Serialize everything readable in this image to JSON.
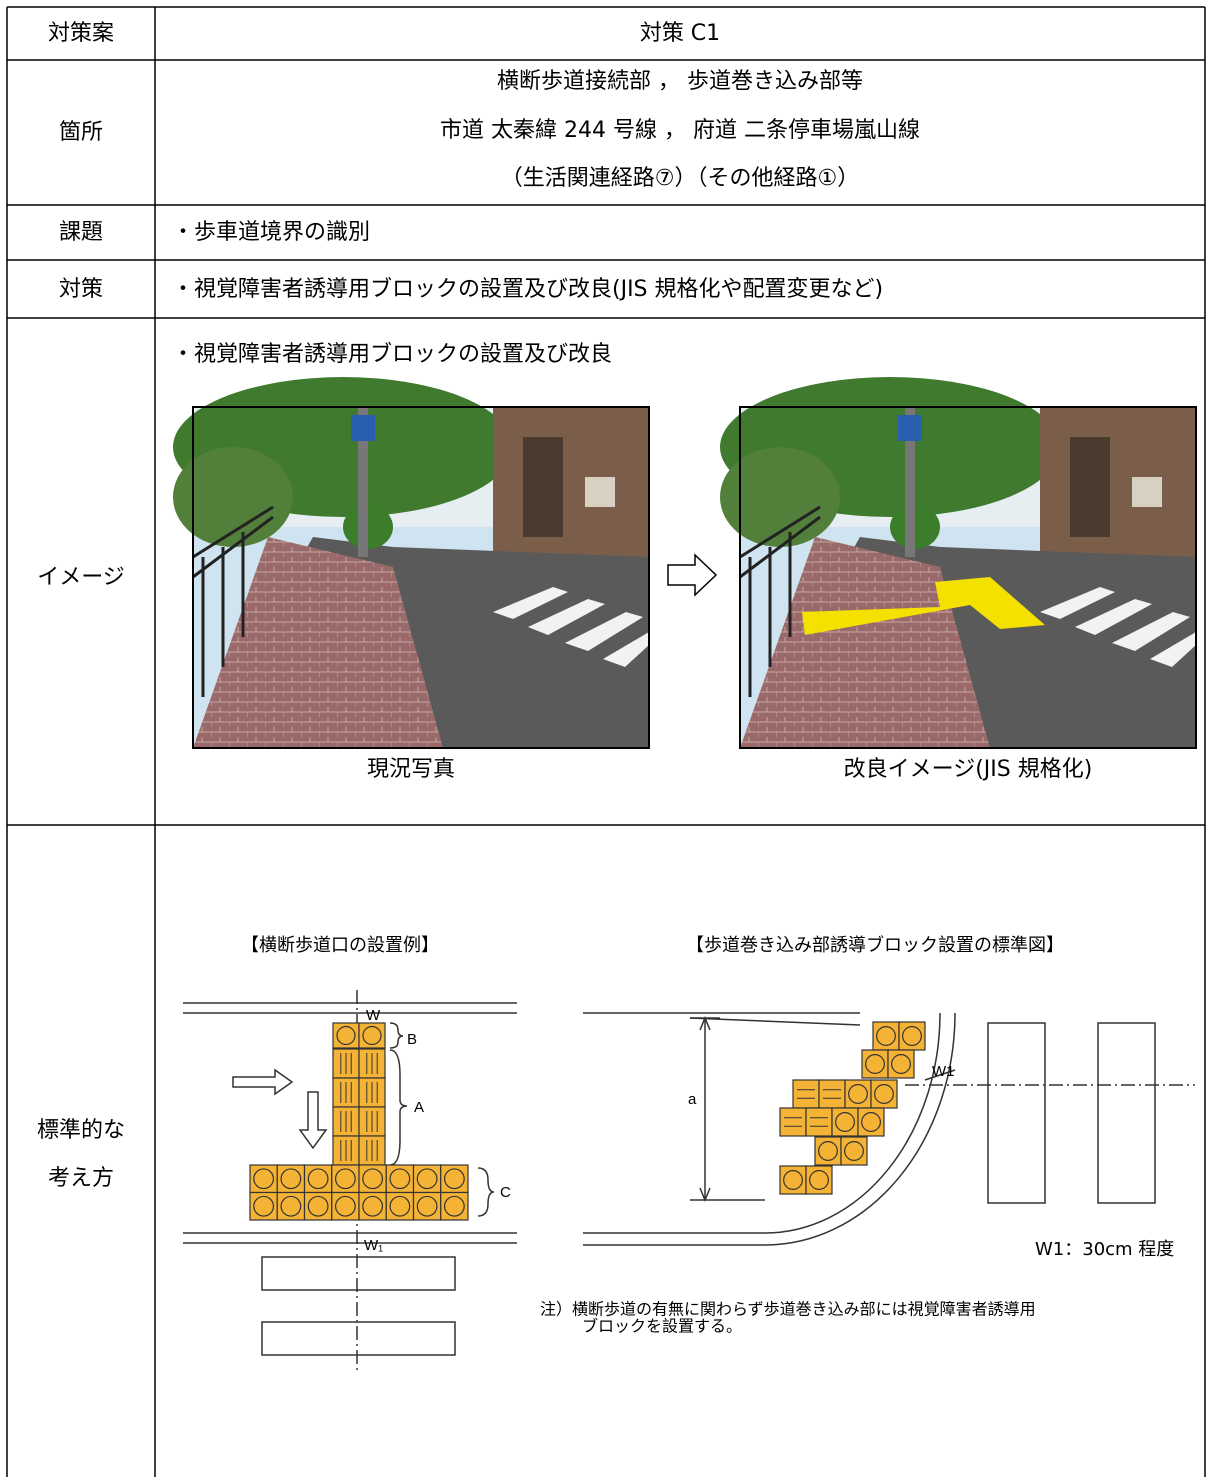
{
  "table": {
    "rows": [
      {
        "label": "対策案",
        "content": "対策 C1"
      },
      {
        "label": "箇所",
        "lines": [
          "横断歩道接続部 ， 歩道巻き込み部等",
          "市道 太秦緯 244 号線 ， 府道 二条停車場嵐山線",
          "（生活関連経路⑦）（その他経路①）"
        ]
      },
      {
        "label": "課題",
        "content": "・歩車道境界の識別"
      },
      {
        "label": "対策",
        "content": "・視覚障害者誘導用ブロックの設置及び改良(JIS 規格化や配置変更など)"
      },
      {
        "label": "イメージ",
        "heading": "・視覚障害者誘導用ブロックの設置及び改良",
        "captions": [
          "現況写真",
          "改良イメージ(JIS 規格化)"
        ]
      },
      {
        "label_lines": [
          "標準的な",
          "考え方"
        ],
        "left_diagram": {
          "title": "【横断歩道口の設置例】",
          "labels": {
            "w": "W",
            "b": "B",
            "a": "A",
            "c": "C",
            "w1": "W₁"
          }
        },
        "right_diagram": {
          "title": "【歩道巻き込み部誘導ブロック設置の標準図】",
          "labels": {
            "a": "a",
            "w1": "W1"
          },
          "dimension": "W1：30cm 程度",
          "note_lines": [
            "注）横断歩道の有無に関わらず歩道巻き込み部には視覚障害者誘導用",
            "ブロックを設置する。"
          ]
        }
      }
    ]
  }
}
